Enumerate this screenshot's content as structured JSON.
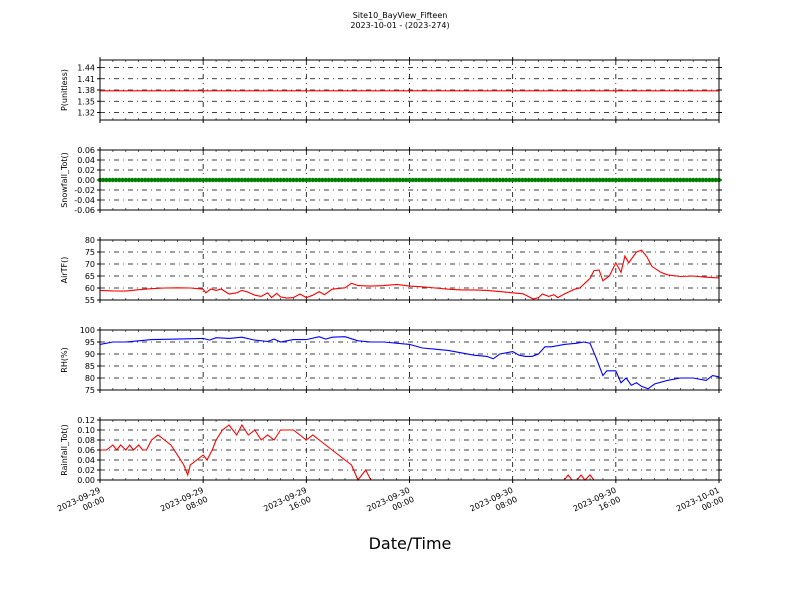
{
  "figure": {
    "title": "Site10_BayView_Fifteen",
    "subtitle": "2023-10-01 - (2023-274)",
    "xlabel": "Date/Time",
    "x_ticks": [
      {
        "l1": "2023-09-29",
        "l2": "00:00"
      },
      {
        "l1": "2023-09-29",
        "l2": "08:00"
      },
      {
        "l1": "2023-09-29",
        "l2": "16:00"
      },
      {
        "l1": "2023-09-30",
        "l2": "00:00"
      },
      {
        "l1": "2023-09-30",
        "l2": "08:00"
      },
      {
        "l1": "2023-09-30",
        "l2": "16:00"
      },
      {
        "l1": "2023-10-01",
        "l2": "00:00"
      }
    ]
  },
  "chart_data": [
    {
      "type": "line",
      "ylabel": "P(unitless)",
      "ylim": [
        1.3,
        1.46
      ],
      "yticks": [
        "1.32",
        "1.35",
        "1.38",
        "1.41",
        "1.44"
      ],
      "color": "#ff0000",
      "grid": true,
      "x_range": [
        "2023-09-29 00:00",
        "2023-10-01 00:00"
      ],
      "series": [
        {
          "points": [
            [
              0,
              1.378
            ],
            [
              48,
              1.378
            ]
          ]
        }
      ]
    },
    {
      "type": "scatter",
      "ylabel": "Snowfall_Tot()",
      "ylim": [
        -0.06,
        0.06
      ],
      "yticks": [
        "-0.06",
        "-0.04",
        "-0.02",
        "0.00",
        "0.02",
        "0.04",
        "0.06"
      ],
      "color": "#008000",
      "grid": true,
      "x_range": [
        "2023-09-29 00:00",
        "2023-10-01 00:00"
      ],
      "series": [
        {
          "constant": 0.0,
          "interval_hours": 0.25
        }
      ]
    },
    {
      "type": "line",
      "ylabel": "AirTF()",
      "ylim": [
        55,
        80
      ],
      "yticks": [
        "55",
        "60",
        "65",
        "70",
        "75",
        "80"
      ],
      "color": "#ff0000",
      "grid": true,
      "x_range": [
        "2023-09-29 00:00",
        "2023-10-01 00:00"
      ],
      "series": [
        {
          "points": [
            [
              0,
              59
            ],
            [
              1,
              58.8
            ],
            [
              2,
              58.7
            ],
            [
              3,
              59.3
            ],
            [
              4,
              59.7
            ],
            [
              5,
              60
            ],
            [
              6,
              60.1
            ],
            [
              7,
              60
            ],
            [
              8,
              59.5
            ],
            [
              8.2,
              58
            ],
            [
              8.6,
              59.6
            ],
            [
              9,
              59
            ],
            [
              9.4,
              59.6
            ],
            [
              10,
              57.5
            ],
            [
              10.6,
              58
            ],
            [
              11,
              59
            ],
            [
              11.4,
              58.4
            ],
            [
              12,
              57
            ],
            [
              12.5,
              56.5
            ],
            [
              13,
              58
            ],
            [
              13.3,
              56
            ],
            [
              13.7,
              57.8
            ],
            [
              14,
              56.3
            ],
            [
              14.5,
              55.8
            ],
            [
              15,
              56
            ],
            [
              15.5,
              57.5
            ],
            [
              16,
              56
            ],
            [
              16.5,
              57
            ],
            [
              17,
              58.5
            ],
            [
              17.4,
              57.2
            ],
            [
              18,
              59.5
            ],
            [
              19,
              60.1
            ],
            [
              19.5,
              62
            ],
            [
              20,
              61
            ],
            [
              21,
              60.8
            ],
            [
              22,
              61
            ],
            [
              23,
              61.5
            ],
            [
              24,
              60.8
            ],
            [
              25,
              60.5
            ],
            [
              26,
              60
            ],
            [
              27,
              59.5
            ],
            [
              28,
              59.2
            ],
            [
              29,
              59.2
            ],
            [
              30,
              59
            ],
            [
              31,
              58.5
            ],
            [
              32,
              58
            ],
            [
              32.8,
              57.6
            ],
            [
              33.2,
              56.5
            ],
            [
              33.6,
              55.4
            ],
            [
              34,
              56
            ],
            [
              34.3,
              57.5
            ],
            [
              34.8,
              56.5
            ],
            [
              35.2,
              57.2
            ],
            [
              35.5,
              56
            ],
            [
              36,
              57.5
            ],
            [
              36.4,
              58.5
            ],
            [
              36.8,
              59.5
            ],
            [
              37.2,
              60
            ],
            [
              37.6,
              62
            ],
            [
              38,
              64
            ],
            [
              38.3,
              67.2
            ],
            [
              38.7,
              67.5
            ],
            [
              39,
              63
            ],
            [
              39.5,
              65
            ],
            [
              40,
              70.5
            ],
            [
              40.4,
              66.5
            ],
            [
              40.7,
              73.3
            ],
            [
              41,
              70.5
            ],
            [
              41.6,
              75
            ],
            [
              42,
              75.8
            ],
            [
              42.4,
              73
            ],
            [
              42.8,
              69
            ],
            [
              43.5,
              66.5
            ],
            [
              44,
              65.5
            ],
            [
              45,
              64.8
            ],
            [
              46,
              65
            ],
            [
              47,
              64.5
            ],
            [
              48,
              64.2
            ]
          ]
        }
      ]
    },
    {
      "type": "line",
      "ylabel": "RH(%)",
      "ylim": [
        75,
        100
      ],
      "yticks": [
        "75",
        "80",
        "85",
        "90",
        "95",
        "100"
      ],
      "color": "#0000ff",
      "grid": true,
      "x_range": [
        "2023-09-29 00:00",
        "2023-10-01 00:00"
      ],
      "series": [
        {
          "points": [
            [
              0,
              94
            ],
            [
              1,
              95
            ],
            [
              2,
              95
            ],
            [
              3,
              95.5
            ],
            [
              4,
              96
            ],
            [
              6,
              96.2
            ],
            [
              8,
              96.5
            ],
            [
              8.5,
              95.8
            ],
            [
              9,
              96.8
            ],
            [
              10,
              96.5
            ],
            [
              11,
              97
            ],
            [
              12,
              95.8
            ],
            [
              13,
              95.2
            ],
            [
              13.5,
              96.2
            ],
            [
              14,
              95
            ],
            [
              15,
              96
            ],
            [
              16,
              96
            ],
            [
              17,
              97.2
            ],
            [
              17.5,
              96.2
            ],
            [
              18,
              97
            ],
            [
              19,
              97.2
            ],
            [
              20,
              95.5
            ],
            [
              21,
              95
            ],
            [
              22,
              95
            ],
            [
              24,
              94
            ],
            [
              25,
              92.5
            ],
            [
              26,
              92
            ],
            [
              27,
              91.5
            ],
            [
              28,
              90.5
            ],
            [
              29,
              89.5
            ],
            [
              30,
              89
            ],
            [
              30.5,
              88
            ],
            [
              31,
              90
            ],
            [
              32,
              91
            ],
            [
              32.5,
              89.5
            ],
            [
              33,
              89
            ],
            [
              33.5,
              89
            ],
            [
              34,
              90
            ],
            [
              34.5,
              93
            ],
            [
              35,
              93
            ],
            [
              36,
              94
            ],
            [
              37,
              94.5
            ],
            [
              37.5,
              95
            ],
            [
              38,
              94.5
            ],
            [
              38.5,
              88
            ],
            [
              39,
              81
            ],
            [
              39.3,
              83
            ],
            [
              40,
              83
            ],
            [
              40.4,
              78
            ],
            [
              40.8,
              80
            ],
            [
              41.2,
              77
            ],
            [
              41.6,
              78
            ],
            [
              42,
              76.5
            ],
            [
              42.5,
              75.5
            ],
            [
              43,
              77.5
            ],
            [
              44,
              79
            ],
            [
              45,
              80
            ],
            [
              46,
              80
            ],
            [
              47,
              79
            ],
            [
              47.5,
              81
            ],
            [
              48,
              80.5
            ]
          ]
        }
      ]
    },
    {
      "type": "line",
      "ylabel": "Rainfall_Tot()",
      "ylim": [
        0,
        0.12
      ],
      "yticks": [
        "0.00",
        "0.02",
        "0.04",
        "0.06",
        "0.08",
        "0.10",
        "0.12"
      ],
      "color": "#ff0000",
      "grid": true,
      "x_range": [
        "2023-09-29 00:00",
        "2023-10-01 00:00"
      ],
      "series": [
        {
          "points": [
            [
              0,
              0.06
            ],
            [
              0.5,
              0.06
            ],
            [
              1,
              0.07
            ],
            [
              1.3,
              0.06
            ],
            [
              1.6,
              0.07
            ],
            [
              2,
              0.06
            ],
            [
              2.3,
              0.07
            ],
            [
              2.6,
              0.06
            ],
            [
              3,
              0.07
            ],
            [
              3.3,
              0.06
            ],
            [
              3.6,
              0.06
            ],
            [
              4,
              0.08
            ],
            [
              4.5,
              0.09
            ],
            [
              5,
              0.08
            ],
            [
              5.5,
              0.07
            ],
            [
              6,
              0.05
            ],
            [
              6.5,
              0.03
            ],
            [
              6.8,
              0.01
            ],
            [
              7,
              0.03
            ],
            [
              7.5,
              0.04
            ],
            [
              8,
              0.05
            ],
            [
              8.3,
              0.04
            ],
            [
              8.7,
              0.06
            ],
            [
              9,
              0.08
            ],
            [
              9.5,
              0.1
            ],
            [
              10,
              0.11
            ],
            [
              10.3,
              0.1
            ],
            [
              10.6,
              0.09
            ],
            [
              11,
              0.11
            ],
            [
              11.5,
              0.09
            ],
            [
              12,
              0.1
            ],
            [
              12.5,
              0.08
            ],
            [
              13,
              0.09
            ],
            [
              13.5,
              0.08
            ],
            [
              14,
              0.1
            ],
            [
              15,
              0.1
            ],
            [
              15.5,
              0.09
            ],
            [
              16,
              0.08
            ],
            [
              16.5,
              0.09
            ],
            [
              17,
              0.08
            ],
            [
              17.5,
              0.07
            ],
            [
              18,
              0.06
            ],
            [
              18.5,
              0.05
            ],
            [
              19,
              0.04
            ],
            [
              19.5,
              0.03
            ],
            [
              20,
              0
            ],
            [
              20.3,
              0.01
            ],
            [
              20.6,
              0.02
            ],
            [
              21,
              0
            ],
            [
              36,
              0
            ],
            [
              36.3,
              0.01
            ],
            [
              36.6,
              0
            ],
            [
              37,
              0
            ],
            [
              37.3,
              0.01
            ],
            [
              37.6,
              0
            ],
            [
              38,
              0.01
            ],
            [
              38.3,
              0
            ],
            [
              48,
              0
            ]
          ]
        }
      ]
    }
  ]
}
